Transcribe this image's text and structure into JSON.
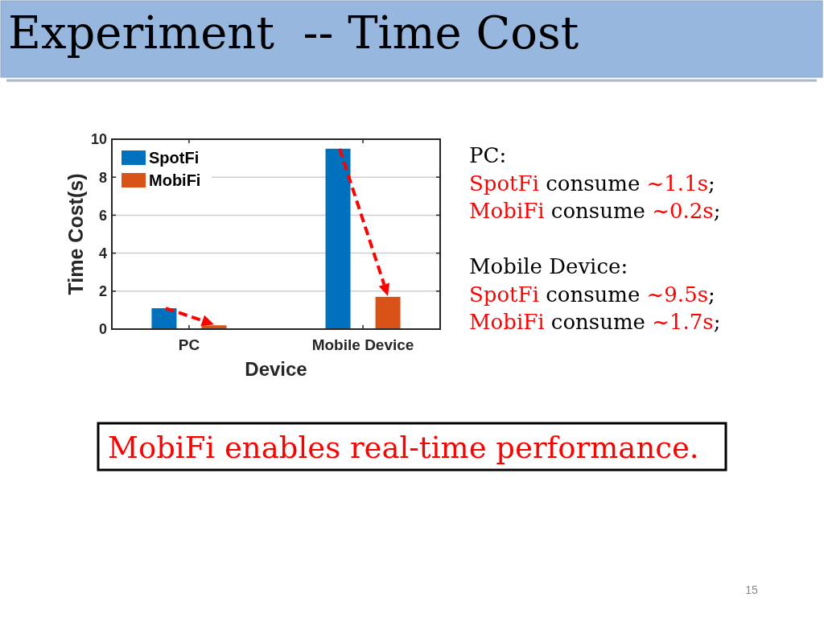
{
  "chart_data": {
    "type": "bar",
    "title": "Experiment  -- Time Cost",
    "categories": [
      "PC",
      "Mobile Device"
    ],
    "series": [
      {
        "name": "SpotFi",
        "color": "#0072bd",
        "values": [
          1.1,
          9.5
        ]
      },
      {
        "name": "MobiFi",
        "color": "#d95319",
        "values": [
          0.2,
          1.7
        ]
      }
    ],
    "xlabel": "Device",
    "ylabel": "Time Cost(s)",
    "ylim": [
      0,
      10
    ],
    "yticks": [
      0,
      2,
      4,
      6,
      8,
      10
    ],
    "grid": "y",
    "legend": "top left",
    "annotations": [
      "PC:",
      "SpotFi consume ~1.1s;",
      "MobiFi consume ~0.2s;",
      "Mobile Device:",
      "SpotFi consume ~9.5s;",
      "MobiFi consume ~1.7s;",
      "MobiFi enables real-time performance.",
      "15"
    ]
  }
}
